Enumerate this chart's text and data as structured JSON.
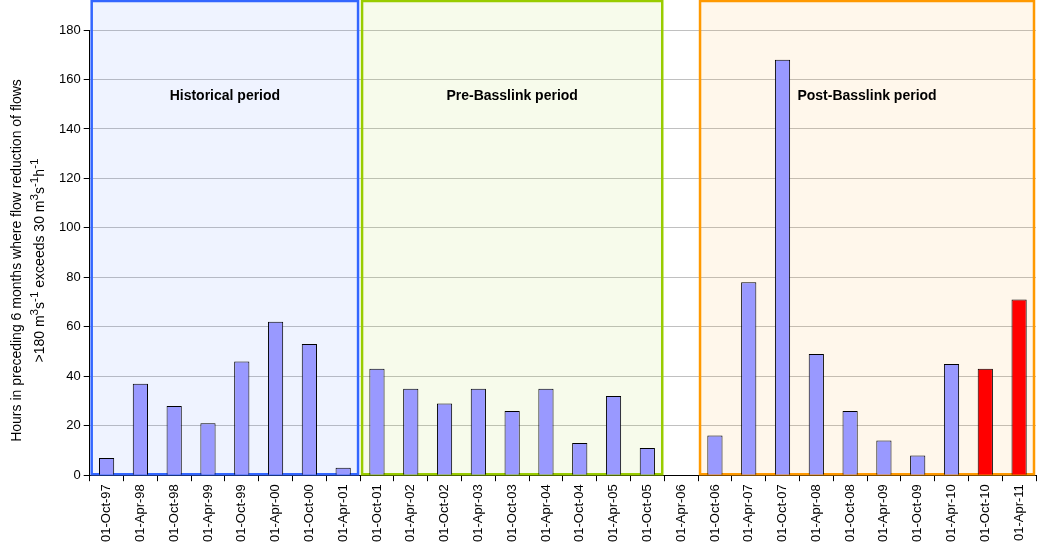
{
  "chart_data": {
    "type": "bar",
    "ylabel": "Hours in preceding 6 months where flow reduction  of flows >180 m$^{3}$s$^{-1}$ exceeds  30 m$^{3}$s$^{-1}$h$^{-1}$",
    "categories": [
      "01-Oct-97",
      "01-Apr-98",
      "01-Oct-98",
      "01-Apr-99",
      "01-Oct-99",
      "01-Apr-00",
      "01-Oct-00",
      "01-Apr-01",
      "01-Oct-01",
      "01-Apr-02",
      "01-Oct-02",
      "01-Apr-03",
      "01-Oct-03",
      "01-Apr-04",
      "01-Oct-04",
      "01-Apr-05",
      "01-Oct-05",
      "01-Apr-06",
      "01-Oct-06",
      "01-Apr-07",
      "01-Oct-07",
      "01-Apr-08",
      "01-Oct-08",
      "01-Apr-09",
      "01-Oct-09",
      "01-Apr-10",
      "01-Oct-10",
      "01-Apr-11"
    ],
    "values": [
      7,
      37,
      28,
      21,
      46,
      62,
      53,
      3,
      43,
      35,
      29,
      35,
      26,
      35,
      13,
      32,
      11,
      null,
      16,
      78,
      168,
      49,
      26,
      14,
      8,
      45,
      43,
      71
    ],
    "colors": [
      "#9999ff",
      "#9999ff",
      "#9999ff",
      "#9999ff",
      "#9999ff",
      "#9999ff",
      "#9999ff",
      "#9999ff",
      "#9999ff",
      "#9999ff",
      "#9999ff",
      "#9999ff",
      "#9999ff",
      "#9999ff",
      "#9999ff",
      "#9999ff",
      "#9999ff",
      "#9999ff",
      "#9999ff",
      "#9999ff",
      "#9999ff",
      "#9999ff",
      "#9999ff",
      "#9999ff",
      "#9999ff",
      "#9999ff",
      "#ff0000",
      "#ff0000"
    ],
    "ylim": [
      0,
      180
    ],
    "yticks": [
      0,
      20,
      40,
      60,
      80,
      100,
      120,
      140,
      160,
      180
    ],
    "grid": "y",
    "bands": [
      {
        "axis": "x",
        "from": "01-Oct-97",
        "to": "01-Apr-01",
        "label": "Historical period",
        "color": "#3366ff"
      },
      {
        "axis": "x",
        "from": "01-Oct-01",
        "to": "01-Oct-05",
        "label": "Pre-Basslink period",
        "color": "#99cc00"
      },
      {
        "axis": "x",
        "from": "01-Oct-06",
        "to": "01-Apr-11",
        "label": "Post-Basslink period",
        "color": "#ff9900"
      }
    ]
  }
}
